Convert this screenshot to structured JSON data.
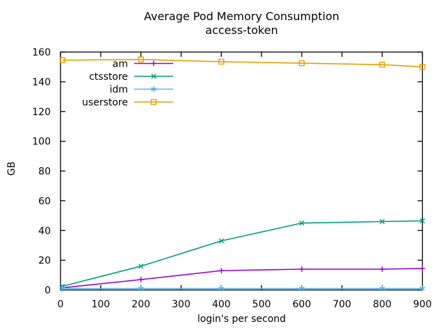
{
  "chart_data": {
    "type": "line",
    "title": "Average Pod Memory Consumption",
    "subtitle": "access-token",
    "xlabel": "login's per second",
    "ylabel": "GB",
    "xlim": [
      0,
      900
    ],
    "ylim": [
      0,
      160
    ],
    "xticks": [
      0,
      100,
      200,
      300,
      400,
      500,
      600,
      700,
      800,
      900
    ],
    "yticks": [
      0,
      20,
      40,
      60,
      80,
      100,
      120,
      140,
      160
    ],
    "grid": false,
    "legend_position": "top-left",
    "x": [
      5,
      200,
      400,
      600,
      800,
      900
    ],
    "series": [
      {
        "name": "am",
        "color": "#9400d3",
        "marker": "plus",
        "values": [
          1.5,
          7,
          13,
          14,
          14,
          14.5
        ]
      },
      {
        "name": "ctsstore",
        "color": "#009e73",
        "marker": "cross",
        "values": [
          2.5,
          16,
          33,
          45,
          46,
          46.5
        ]
      },
      {
        "name": "idm",
        "color": "#56b4e9",
        "marker": "asterisk",
        "values": [
          1,
          1,
          1,
          1,
          1,
          1
        ]
      },
      {
        "name": "userstore",
        "color": "#e69f00",
        "marker": "square",
        "values": [
          154.5,
          155,
          153.5,
          152.5,
          151.5,
          150
        ]
      }
    ],
    "colors": {
      "border": "#000000",
      "text": "#000000",
      "background": "#ffffff"
    }
  }
}
